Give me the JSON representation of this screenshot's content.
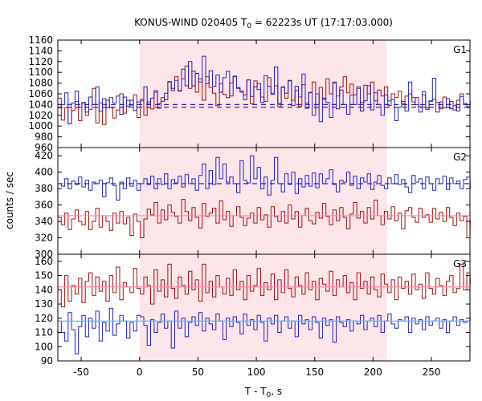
{
  "chart_data": {
    "type": "line",
    "title": "KONUS-WIND 020405 T",
    "title_sub": "0",
    "title_rest": " = 62223s UT (17:17:03.000)",
    "xlabel_main": "T - T",
    "xlabel_sub": "0",
    "xlabel_rest": ", s",
    "ylabel": "counts / sec",
    "xlim": [
      -70,
      283
    ],
    "xticks": [
      "-50",
      "0",
      "50",
      "100",
      "150",
      "200",
      "250"
    ],
    "xtick_values": [
      -50,
      0,
      50,
      100,
      150,
      200,
      250
    ],
    "shaded_interval": [
      0,
      212
    ],
    "bin_width": 2.944,
    "colors": {
      "red": "#a01010",
      "blue": "#2222bb",
      "pink": "#ff88aa",
      "cyan": "#55bbee",
      "shade": "#fde6ea"
    },
    "panels": [
      {
        "label": "G1",
        "ylim": [
          960,
          1160
        ],
        "yticks": [
          960,
          980,
          1000,
          1020,
          1040,
          1060,
          1080,
          1100,
          1120,
          1140,
          1160
        ],
        "background": [
          {
            "series": "red",
            "value": 1035,
            "style": "dashed"
          },
          {
            "series": "blue",
            "value": 1040,
            "style": "dashed"
          }
        ],
        "red_values": [
          1052,
          1011,
          1034,
          1004,
          1029,
          1046,
          1010,
          1043,
          1020,
          1031,
          1070,
          1006,
          1043,
          1003,
          1048,
          1034,
          1015,
          1030,
          1060,
          1024,
          1048,
          1039,
          1058,
          1016,
          1050,
          1020,
          1045,
          1032,
          1063,
          1042,
          1053,
          1049,
          1083,
          1066,
          1092,
          1066,
          1088,
          1112,
          1070,
          1102,
          1063,
          1088,
          1048,
          1092,
          1072,
          1061,
          1038,
          1079,
          1059,
          1053,
          1080,
          1093,
          1072,
          1065,
          1058,
          1086,
          1042,
          1084,
          1068,
          1054,
          1046,
          1090,
          1061,
          1075,
          1036,
          1072,
          1052,
          1084,
          1048,
          1066,
          1037,
          1077,
          1043,
          1063,
          1082,
          1040,
          1072,
          1050,
          1088,
          1060,
          1080,
          1056,
          1073,
          1092,
          1062,
          1078,
          1058,
          1070,
          1044,
          1076,
          1060,
          1082,
          1047,
          1067,
          1056,
          1073,
          1038,
          1060,
          1053,
          1065,
          1042,
          1056,
          1060,
          1045,
          1053,
          1036,
          1058,
          1031,
          1046,
          1050,
          1044,
          1032,
          1054,
          1040,
          1046,
          1030,
          1048,
          1060,
          1042,
          1036,
          1041
        ],
        "blue_values": [
          1034,
          1040,
          1062,
          1004,
          1043,
          1065,
          1035,
          1044,
          1026,
          1054,
          1040,
          1073,
          1028,
          1051,
          1034,
          1053,
          1043,
          1056,
          1022,
          1054,
          1037,
          1048,
          1029,
          1045,
          1047,
          1073,
          1041,
          1052,
          1066,
          1033,
          1046,
          1061,
          1082,
          1070,
          1085,
          1065,
          1106,
          1075,
          1120,
          1075,
          1098,
          1082,
          1130,
          1079,
          1103,
          1074,
          1095,
          1063,
          1090,
          1102,
          1056,
          1092,
          1070,
          1063,
          1049,
          1086,
          1055,
          1073,
          1079,
          1044,
          1094,
          1074,
          1059,
          1110,
          1042,
          1073,
          1061,
          1085,
          1038,
          1074,
          1054,
          1097,
          1033,
          1062,
          1020,
          1060,
          1008,
          1052,
          1044,
          1016,
          1082,
          1032,
          1067,
          1040,
          1022,
          1058,
          1040,
          1073,
          1028,
          1047,
          1075,
          1030,
          1062,
          1040,
          1020,
          1058,
          1047,
          1050,
          1010,
          1035,
          1046,
          1028,
          1082,
          1053,
          1040,
          1026,
          1064,
          1034,
          1047,
          1089,
          1026,
          1045,
          1034,
          1051,
          1032,
          1038,
          1028,
          1055,
          1040,
          1034,
          1045
        ]
      },
      {
        "label": "G2",
        "ylim": [
          300,
          430
        ],
        "yticks": [
          300,
          320,
          340,
          360,
          380,
          400,
          420
        ],
        "background": [
          {
            "series": "red",
            "value": 347,
            "style": "solid"
          },
          {
            "series": "blue",
            "value": 386,
            "style": "dashed"
          }
        ],
        "red_values": [
          345,
          336,
          350,
          330,
          343,
          354,
          340,
          336,
          352,
          330,
          340,
          356,
          333,
          347,
          340,
          329,
          350,
          338,
          352,
          337,
          345,
          323,
          349,
          340,
          320,
          343,
          355,
          348,
          363,
          338,
          354,
          342,
          360,
          351,
          346,
          338,
          367,
          352,
          341,
          357,
          345,
          332,
          362,
          346,
          350,
          356,
          338,
          365,
          342,
          352,
          334,
          347,
          358,
          345,
          335,
          344,
          350,
          338,
          357,
          342,
          348,
          333,
          358,
          346,
          340,
          352,
          338,
          360,
          343,
          352,
          333,
          347,
          356,
          341,
          337,
          351,
          344,
          362,
          346,
          336,
          354,
          341,
          357,
          345,
          331,
          349,
          363,
          344,
          352,
          338,
          357,
          343,
          366,
          347,
          336,
          352,
          343,
          358,
          341,
          350,
          331,
          353,
          357,
          345,
          339,
          356,
          345,
          348,
          339,
          356,
          343,
          351,
          340,
          357,
          345,
          335,
          350,
          341,
          346,
          320,
          341
        ],
        "blue_values": [
          386,
          383,
          392,
          380,
          389,
          385,
          394,
          382,
          390,
          378,
          388,
          386,
          390,
          370,
          387,
          393,
          384,
          366,
          388,
          380,
          393,
          383,
          390,
          378,
          386,
          392,
          385,
          395,
          380,
          392,
          385,
          398,
          380,
          391,
          387,
          395,
          382,
          397,
          386,
          392,
          378,
          396,
          410,
          380,
          402,
          385,
          418,
          392,
          410,
          388,
          394,
          386,
          375,
          414,
          390,
          387,
          420,
          392,
          406,
          380,
          394,
          372,
          390,
          418,
          386,
          376,
          398,
          385,
          400,
          374,
          392,
          382,
          396,
          383,
          399,
          381,
          398,
          386,
          392,
          403,
          385,
          376,
          390,
          388,
          400,
          384,
          395,
          380,
          393,
          388,
          398,
          379,
          388,
          396,
          384,
          380,
          393,
          386,
          397,
          385,
          391,
          382,
          375,
          396,
          388,
          392,
          380,
          394,
          386,
          378,
          392,
          386,
          395,
          379,
          393,
          386,
          389,
          380,
          391,
          394,
          381
        ]
      },
      {
        "label": "G3",
        "ylim": [
          90,
          165
        ],
        "yticks": [
          90,
          100,
          110,
          120,
          130,
          140,
          150,
          160
        ],
        "background": [
          {
            "series": "red",
            "value": 142,
            "style": "solid"
          },
          {
            "series": "blue",
            "value": 118,
            "style": "solid"
          }
        ],
        "red_values": [
          140,
          128,
          150,
          132,
          143,
          137,
          148,
          131,
          146,
          152,
          136,
          149,
          139,
          146,
          132,
          150,
          138,
          156,
          133,
          145,
          142,
          138,
          155,
          141,
          137,
          149,
          143,
          130,
          154,
          139,
          147,
          135,
          158,
          141,
          134,
          149,
          143,
          137,
          153,
          140,
          147,
          132,
          158,
          138,
          146,
          135,
          150,
          142,
          137,
          148,
          136,
          154,
          140,
          146,
          133,
          150,
          139,
          143,
          155,
          136,
          145,
          140,
          151,
          133,
          147,
          138,
          154,
          141,
          135,
          149,
          143,
          137,
          152,
          140,
          146,
          133,
          148,
          144,
          139,
          153,
          136,
          147,
          142,
          150,
          138,
          145,
          133,
          152,
          141,
          146,
          137,
          149,
          140,
          135,
          151,
          144,
          138,
          147,
          133,
          149,
          141,
          146,
          137,
          151,
          140,
          144,
          134,
          152,
          141,
          137,
          148,
          143,
          136,
          146,
          150,
          138,
          141,
          158,
          140,
          152,
          144
        ],
        "blue_values": [
          118,
          110,
          104,
          124,
          112,
          95,
          114,
          122,
          107,
          120,
          113,
          125,
          104,
          117,
          111,
          127,
          108,
          116,
          122,
          118,
          106,
          117,
          111,
          122,
          121,
          115,
          101,
          119,
          110,
          117,
          123,
          113,
          118,
          99,
          125,
          113,
          120,
          107,
          117,
          121,
          115,
          124,
          111,
          120,
          116,
          112,
          123,
          118,
          105,
          120,
          114,
          121,
          117,
          109,
          123,
          115,
          119,
          112,
          122,
          117,
          104,
          120,
          116,
          122,
          110,
          118,
          121,
          113,
          118,
          107,
          122,
          116,
          119,
          112,
          121,
          117,
          106,
          120,
          115,
          119,
          103,
          121,
          117,
          114,
          119,
          111,
          118,
          116,
          122,
          112,
          118,
          120,
          114,
          122,
          110,
          118,
          123,
          116,
          113,
          119,
          118,
          121,
          110,
          120,
          116,
          119,
          112,
          121,
          115,
          118,
          120,
          113,
          119,
          110,
          118,
          121,
          115,
          119,
          117,
          118,
          120
        ]
      }
    ]
  }
}
